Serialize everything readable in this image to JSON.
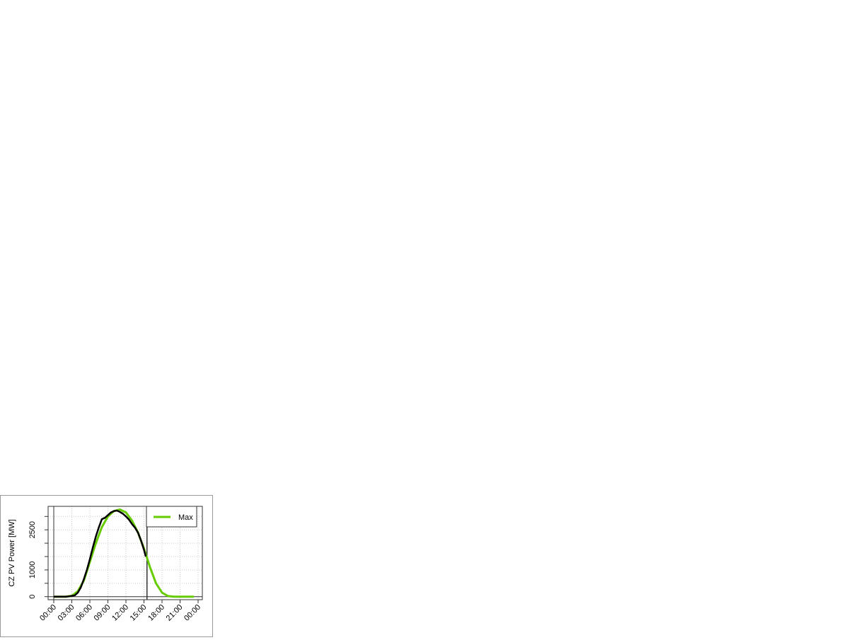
{
  "chart_data": {
    "type": "line",
    "title": "",
    "xlabel": "",
    "ylabel": "CZ PV Power [MW]",
    "xlim_hours": [
      -1,
      25
    ],
    "ylim": [
      -100,
      3400
    ],
    "x_tick_labels": [
      "00:00",
      "03:00",
      "06:00",
      "09:00",
      "12:00",
      "15:00",
      "18:00",
      "21:00",
      "00:00"
    ],
    "x_tick_hours": [
      0,
      3,
      6,
      9,
      12,
      15,
      18,
      21,
      24
    ],
    "y_ticks": [
      0,
      500,
      1000,
      1500,
      2000,
      2500,
      3000
    ],
    "y_tick_labels": [
      "0",
      "",
      "1000",
      "",
      "",
      "2500",
      ""
    ],
    "grid": true,
    "vertical_lines_hours": [
      0,
      15.5
    ],
    "legend": {
      "position": "top-right",
      "entries": [
        {
          "label": "Max",
          "color": "#66cc00"
        }
      ]
    },
    "series": [
      {
        "name": "Max",
        "color": "#66cc00",
        "x_hours": [
          0,
          1,
          2,
          3,
          4,
          5,
          6,
          7,
          8,
          9,
          10,
          11,
          12,
          13,
          14,
          15,
          16,
          17,
          18,
          19,
          20,
          21,
          22,
          23.3
        ],
        "values": [
          0,
          0,
          0,
          30,
          200,
          600,
          1300,
          2000,
          2600,
          3000,
          3200,
          3260,
          3150,
          2850,
          2400,
          1800,
          1100,
          500,
          150,
          20,
          0,
          0,
          0,
          0
        ]
      },
      {
        "color": "#000000",
        "x_hours": [
          0,
          1,
          2,
          2.5,
          3,
          3.5,
          4,
          4.5,
          5,
          5.5,
          6,
          6.5,
          7,
          7.5,
          8,
          8.5,
          9,
          9.5,
          10,
          10.5,
          11,
          11.5,
          12,
          12.5,
          13,
          13.5,
          14,
          14.5,
          15,
          15.3
        ],
        "values": [
          0,
          0,
          0,
          10,
          30,
          50,
          150,
          350,
          650,
          1000,
          1400,
          1850,
          2250,
          2600,
          2900,
          2950,
          3050,
          3150,
          3200,
          3220,
          3170,
          3100,
          3000,
          2880,
          2720,
          2580,
          2400,
          2100,
          1750,
          1500
        ]
      }
    ]
  }
}
